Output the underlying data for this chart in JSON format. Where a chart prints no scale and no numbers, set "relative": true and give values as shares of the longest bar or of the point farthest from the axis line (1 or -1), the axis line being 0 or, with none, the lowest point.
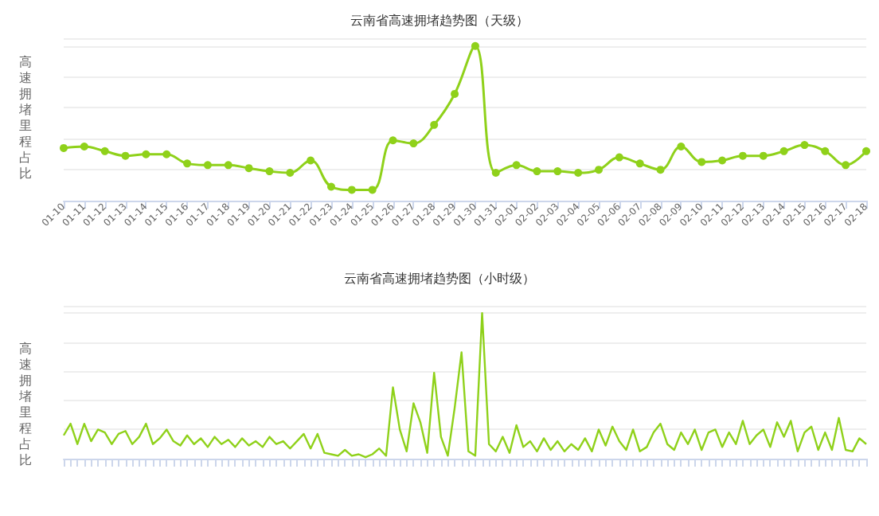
{
  "chart_data": [
    {
      "type": "line",
      "title": "云南省高速拥堵趋势图（天级）",
      "ylabel": "高速拥堵里程占比",
      "relative": true,
      "grid": "y",
      "marker": "circle",
      "categories": [
        "01-10",
        "01-11",
        "01-12",
        "01-13",
        "01-14",
        "01-15",
        "01-16",
        "01-17",
        "01-18",
        "01-19",
        "01-20",
        "01-21",
        "01-22",
        "01-23",
        "01-24",
        "01-25",
        "01-26",
        "01-27",
        "01-28",
        "01-29",
        "01-30",
        "01-31",
        "02-01",
        "02-02",
        "02-03",
        "02-04",
        "02-05",
        "02-06",
        "02-07",
        "02-08",
        "02-09",
        "02-10",
        "02-11",
        "02-12",
        "02-13",
        "02-14",
        "02-15",
        "02-16",
        "02-17",
        "02-18"
      ],
      "series": [
        {
          "color": "#8fd11a",
          "values": [
            0.34,
            0.35,
            0.32,
            0.29,
            0.3,
            0.3,
            0.24,
            0.23,
            0.23,
            0.21,
            0.19,
            0.18,
            0.26,
            0.09,
            0.07,
            0.07,
            0.39,
            0.37,
            0.49,
            0.69,
            1,
            0.18,
            0.23,
            0.19,
            0.19,
            0.18,
            0.2,
            0.28,
            0.24,
            0.2,
            0.35,
            0.25,
            0.26,
            0.29,
            0.29,
            0.32,
            0.36,
            0.32,
            0.23,
            0.32
          ]
        }
      ]
    },
    {
      "type": "line",
      "title": "云南省高速拥堵趋势图（小时级）",
      "ylabel": "高速拥堵里程占比",
      "relative": true,
      "grid": "y",
      "marker": "none",
      "categories": [
        null,
        null,
        null,
        null,
        null,
        null,
        null,
        null,
        null,
        null,
        null,
        null,
        null,
        null,
        null,
        null,
        null,
        null,
        null,
        null,
        null,
        null,
        null,
        null,
        null,
        null,
        null,
        null,
        null,
        null,
        null,
        null,
        null,
        null,
        null,
        null,
        null,
        null,
        null,
        null,
        null,
        null,
        null,
        null,
        null,
        null,
        null,
        null,
        null,
        null,
        null,
        null,
        null,
        null,
        null,
        null,
        null,
        null,
        null,
        null,
        null,
        null,
        null,
        null,
        null,
        null,
        null,
        null,
        null,
        null,
        null,
        null,
        null,
        null,
        null,
        null,
        null,
        null,
        null,
        null,
        null,
        null,
        null,
        null,
        null,
        null,
        null,
        null,
        null,
        null,
        null,
        null,
        null,
        null,
        null,
        null,
        null,
        null,
        null,
        null,
        null,
        null,
        null,
        null,
        null,
        null,
        null,
        null,
        null,
        null,
        null,
        null,
        null,
        null,
        null,
        null,
        null,
        null
      ],
      "series": [
        {
          "color": "#8fd11a",
          "values": [
            0.16,
            0.24,
            0.1,
            0.24,
            0.12,
            0.2,
            0.18,
            0.1,
            0.17,
            0.19,
            0.1,
            0.15,
            0.24,
            0.1,
            0.14,
            0.2,
            0.12,
            0.09,
            0.16,
            0.1,
            0.14,
            0.08,
            0.15,
            0.1,
            0.13,
            0.08,
            0.14,
            0.09,
            0.12,
            0.08,
            0.15,
            0.1,
            0.12,
            0.07,
            0.12,
            0.17,
            0.07,
            0.17,
            0.04,
            0.03,
            0.02,
            0.06,
            0.02,
            0.03,
            0.01,
            0.03,
            0.07,
            0.02,
            0.49,
            0.2,
            0.05,
            0.38,
            0.25,
            0.04,
            0.59,
            0.15,
            0.02,
            0.35,
            0.73,
            0.05,
            0.02,
            1,
            0.1,
            0.05,
            0.15,
            0.04,
            0.23,
            0.08,
            0.12,
            0.05,
            0.14,
            0.06,
            0.12,
            0.05,
            0.1,
            0.06,
            0.14,
            0.05,
            0.2,
            0.09,
            0.22,
            0.12,
            0.06,
            0.2,
            0.05,
            0.08,
            0.18,
            0.24,
            0.1,
            0.06,
            0.18,
            0.1,
            0.2,
            0.06,
            0.18,
            0.2,
            0.08,
            0.18,
            0.1,
            0.26,
            0.1,
            0.16,
            0.2,
            0.08,
            0.25,
            0.15,
            0.26,
            0.05,
            0.18,
            0.22,
            0.06,
            0.18,
            0.06,
            0.28,
            0.06,
            0.05,
            0.14,
            0.1
          ]
        }
      ]
    }
  ]
}
